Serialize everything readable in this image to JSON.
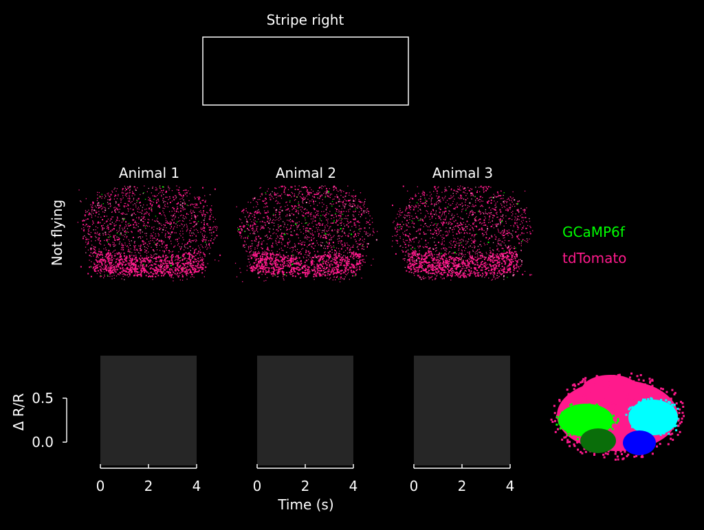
{
  "colors": {
    "background": "#000000",
    "axis": "#ffffff",
    "panel_fill": "#262626",
    "gcamp": "#00ff00",
    "tdtomato": "#ff1a8c",
    "roi_cyan": "#00ffff",
    "roi_blue": "#0000ff",
    "roi_dark_green": "#0a6e0a",
    "roi_green": "#00ff00"
  },
  "stimulus": {
    "title": "Stripe right"
  },
  "images": {
    "row_label": "Not flying",
    "animals": [
      "Animal 1",
      "Animal 2",
      "Animal 3"
    ]
  },
  "legend": {
    "items": [
      {
        "label": "GCaMP6f",
        "color": "#00ff00"
      },
      {
        "label": "tdTomato",
        "color": "#ff1a8c"
      }
    ]
  },
  "roi_map": {
    "regions": [
      "tdTomato",
      "green",
      "dark-green",
      "cyan",
      "blue"
    ]
  },
  "chart_data": {
    "type": "line",
    "xlabel": "Time (s)",
    "ylabel": "Δ R/R",
    "xlim": [
      0,
      4
    ],
    "xticks": [
      "0",
      "2",
      "4"
    ],
    "yticks": [
      "0.0",
      "0.5"
    ],
    "y_scale_bar": [
      0.0,
      0.5
    ],
    "grid": false,
    "series": []
  }
}
